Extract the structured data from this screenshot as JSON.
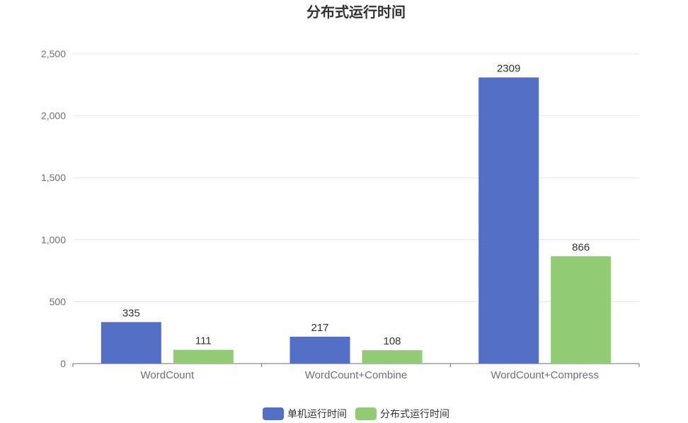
{
  "chart_data": {
    "type": "bar",
    "title": "分布式运行时间",
    "categories": [
      "WordCount",
      "WordCount+Combine",
      "WordCount+Compress"
    ],
    "series": [
      {
        "name": "单机运行时间",
        "values": [
          335,
          217,
          2309
        ],
        "color": "#5470c6"
      },
      {
        "name": "分布式运行时间",
        "values": [
          111,
          108,
          866
        ],
        "color": "#91cc75"
      }
    ],
    "y_ticks": [
      "0",
      "500",
      "1,000",
      "1,500",
      "2,000",
      "2,500"
    ],
    "ylim": [
      0,
      2500
    ],
    "grid": true,
    "legend_position": "bottom-center"
  }
}
